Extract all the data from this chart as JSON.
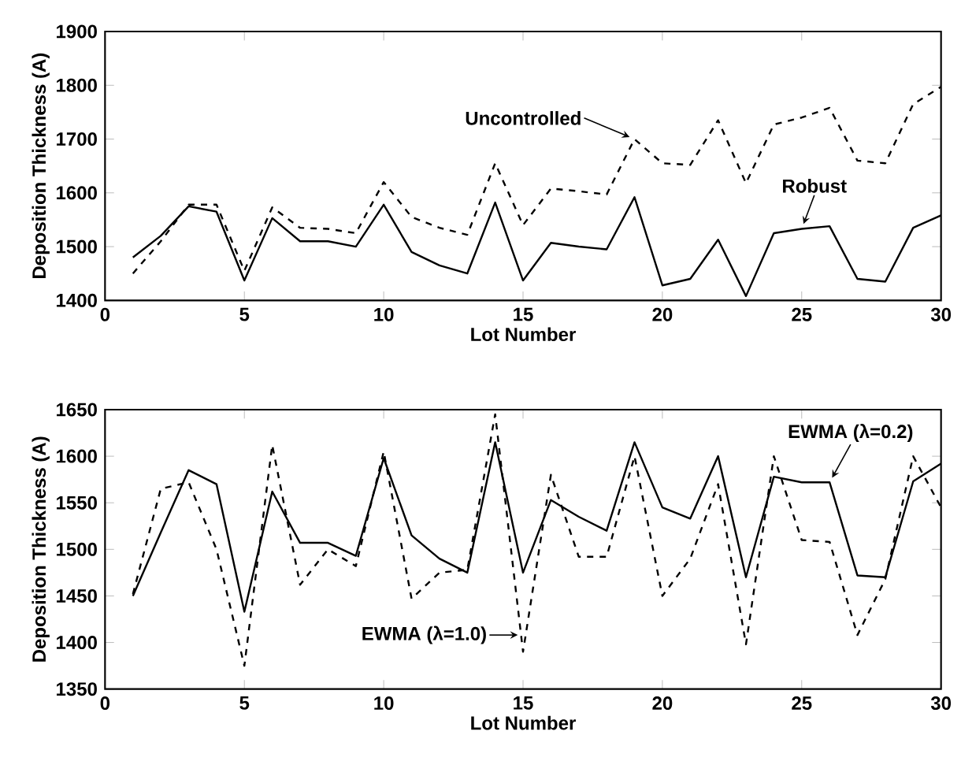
{
  "chart_data": [
    {
      "type": "line",
      "xlabel": "Lot Number",
      "ylabel": "Deposition Thickness (A)",
      "xlim": [
        0,
        30
      ],
      "ylim": [
        1400,
        1900
      ],
      "xticks": [
        0,
        5,
        10,
        15,
        20,
        25,
        30
      ],
      "yticks": [
        1400,
        1500,
        1600,
        1700,
        1800,
        1900
      ],
      "x": [
        1,
        2,
        3,
        4,
        5,
        6,
        7,
        8,
        9,
        10,
        11,
        12,
        13,
        14,
        15,
        16,
        17,
        18,
        19,
        20,
        21,
        22,
        23,
        24,
        25,
        26,
        27,
        28,
        29,
        30
      ],
      "series": [
        {
          "color": "#000000",
          "line_style": "solid",
          "values": [
            1480,
            1520,
            1575,
            1565,
            1437,
            1553,
            1510,
            1510,
            1500,
            1578,
            1490,
            1465,
            1450,
            1582,
            1437,
            1507,
            1500,
            1495,
            1592,
            1428,
            1440,
            1513,
            1408,
            1525,
            1533,
            1538,
            1440,
            1435,
            1535,
            1558
          ]
        },
        {
          "color": "#000000",
          "line_style": "dashed",
          "values": [
            1450,
            1510,
            1578,
            1578,
            1455,
            1573,
            1535,
            1533,
            1525,
            1620,
            1555,
            1535,
            1522,
            1655,
            1540,
            1608,
            1603,
            1597,
            1700,
            1655,
            1652,
            1735,
            1618,
            1727,
            1740,
            1758,
            1660,
            1655,
            1765,
            1797
          ]
        }
      ],
      "annotations": [
        {
          "text": "Uncontrolled",
          "x": 19,
          "y": 1700
        },
        {
          "text": "Robust",
          "x": 25,
          "y": 1533
        }
      ]
    },
    {
      "type": "line",
      "xlabel": "Lot Number",
      "ylabel": "Deposition Thickness (A)",
      "xlim": [
        0,
        30
      ],
      "ylim": [
        1350,
        1650
      ],
      "xticks": [
        0,
        5,
        10,
        15,
        20,
        25,
        30
      ],
      "yticks": [
        1350,
        1400,
        1450,
        1500,
        1550,
        1600,
        1650
      ],
      "x": [
        1,
        2,
        3,
        4,
        5,
        6,
        7,
        8,
        9,
        10,
        11,
        12,
        13,
        14,
        15,
        16,
        17,
        18,
        19,
        20,
        21,
        22,
        23,
        24,
        25,
        26,
        27,
        28,
        29,
        30
      ],
      "series": [
        {
          "color": "#000000",
          "line_style": "solid",
          "values": [
            1450,
            1518,
            1585,
            1570,
            1433,
            1562,
            1507,
            1507,
            1493,
            1598,
            1515,
            1490,
            1475,
            1615,
            1475,
            1553,
            1535,
            1520,
            1615,
            1545,
            1533,
            1600,
            1470,
            1578,
            1572,
            1572,
            1472,
            1470,
            1573,
            1592
          ]
        },
        {
          "color": "#000000",
          "line_style": "dashed",
          "values": [
            1452,
            1565,
            1572,
            1500,
            1375,
            1612,
            1462,
            1500,
            1482,
            1605,
            1447,
            1475,
            1478,
            1645,
            1390,
            1580,
            1492,
            1492,
            1600,
            1450,
            1490,
            1570,
            1398,
            1600,
            1510,
            1508,
            1408,
            1468,
            1600,
            1545
          ]
        }
      ],
      "annotations": [
        {
          "text": "EWMA (λ=1.0)",
          "x": 15,
          "y": 1408
        },
        {
          "text": "EWMA (λ=0.2)",
          "x": 26,
          "y": 1572
        }
      ]
    }
  ]
}
